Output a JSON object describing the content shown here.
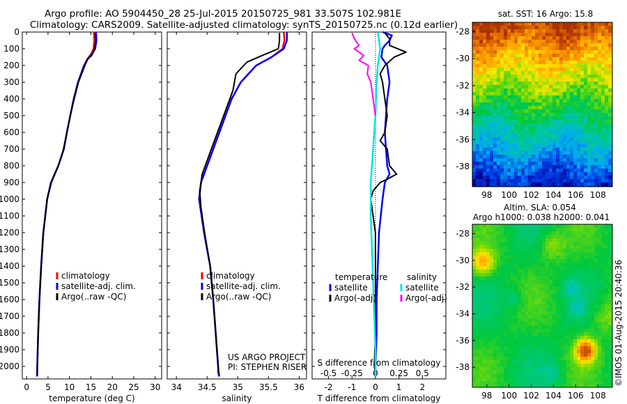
{
  "header": {
    "line1": "Argo profile: AO 5904450_28 25-Jul-2015 20150725_981 33.507S 102.981E",
    "line2": "Climatology: CARS2009. Satellite-adjusted climatology: synTS_20150725.nc (0.12d earlier)"
  },
  "colors": {
    "climatology": "#ff0000",
    "satellite": "#0000ff",
    "argo": "#000000",
    "temp_diff_satellite": "#0000ff",
    "temp_diff_argo": "#000000",
    "sal_diff_satellite": "#00e5e5",
    "sal_diff_argo": "#ff00ff"
  },
  "depth_axis": {
    "range": [
      0,
      2075
    ],
    "ticks": [
      0,
      100,
      200,
      300,
      400,
      500,
      600,
      700,
      800,
      900,
      1000,
      1100,
      1200,
      1300,
      1400,
      1500,
      1600,
      1700,
      1800,
      1900,
      2000
    ]
  },
  "temperature_panel": {
    "xlabel": "temperature (deg C)",
    "xrange": [
      -1,
      31.5
    ],
    "xticks": [
      0,
      5,
      10,
      15,
      20,
      25,
      30
    ],
    "legend": [
      "climatology",
      "satellite-adj. clim.",
      "Argo(..raw -QC)"
    ]
  },
  "salinity_panel": {
    "xlabel": "salinity",
    "xrange": [
      33.85,
      36.12
    ],
    "xticks": [
      34,
      34.5,
      35,
      35.5,
      36
    ],
    "legend": [
      "climatology",
      "satellite-adj. clim.",
      "Argo(..raw -QC)"
    ],
    "annotation1": "US ARGO PROJECT",
    "annotation2": "PI: STEPHEN RISER"
  },
  "difference_panel": {
    "xlabel": "T difference from climatology",
    "slabel": "S difference from climatology",
    "xrange": [
      -2.7,
      3.0
    ],
    "xticks": [
      -2,
      -1,
      0,
      1,
      2
    ],
    "s_ticks": [
      "-0.5",
      "-0.25",
      "0",
      "0.25",
      "0.5"
    ],
    "s_tick_positions_T_units": [
      -2,
      -1,
      0,
      1,
      2
    ],
    "legend_temperature_title": "temperature",
    "legend_salinity_title": "salinity",
    "legend_temperature": [
      "satellite",
      "Argo(-adj)"
    ],
    "legend_salinity": [
      "satellite",
      "Argo(-adj)"
    ]
  },
  "sst_map": {
    "title": "sat. SST: 16 Argo: 15.8",
    "xticks": [
      98,
      100,
      102,
      104,
      106,
      108
    ],
    "yticks": [
      -28,
      -30,
      -32,
      -34,
      -36,
      -38
    ],
    "xrange": [
      96.7,
      109.3
    ],
    "yrange": [
      -39.5,
      -27.3
    ]
  },
  "sla_map": {
    "title1": "Altim. SLA: 0.054",
    "title2": "Argo h1000: 0.038 h2000: 0.041",
    "xticks": [
      98,
      100,
      102,
      104,
      106,
      108
    ],
    "yticks": [
      -28,
      -30,
      -32,
      -34,
      -36,
      -38
    ],
    "xrange": [
      96.7,
      109.3
    ],
    "yrange": [
      -39.5,
      -27.3
    ]
  },
  "side_stamp": "©IMOS 01-Aug-2015 20:40:36",
  "chart_data": [
    {
      "type": "line",
      "title": "",
      "xlabel": "temperature (deg C)",
      "ylabel": "",
      "xlim": [
        -1,
        31.5
      ],
      "ylim": [
        2075,
        0
      ],
      "series": [
        {
          "name": "climatology",
          "depth": [
            0,
            50,
            100,
            130,
            160,
            200,
            300,
            400,
            500,
            600,
            700,
            800,
            900,
            1000,
            1200,
            1400,
            1600,
            1800,
            2000,
            2060
          ],
          "values": [
            15.7,
            15.8,
            15.6,
            15.1,
            14.2,
            13.4,
            12.0,
            11.0,
            10.2,
            9.4,
            8.7,
            7.4,
            5.7,
            4.8,
            3.9,
            3.4,
            3.0,
            2.7,
            2.5,
            2.4
          ]
        },
        {
          "name": "satellite-adj. clim.",
          "depth": [
            0,
            50,
            100,
            130,
            160,
            200,
            300,
            400,
            500,
            600,
            700,
            800,
            900,
            1000,
            1200,
            1400,
            1600,
            1800,
            2000,
            2060
          ],
          "values": [
            16.2,
            16.3,
            16.0,
            15.3,
            14.3,
            13.4,
            12.0,
            11.0,
            10.2,
            9.4,
            8.7,
            7.4,
            5.7,
            4.8,
            3.9,
            3.4,
            3.0,
            2.7,
            2.5,
            2.5
          ]
        },
        {
          "name": "Argo(..raw -QC)",
          "depth": [
            5,
            50,
            100,
            140,
            160,
            200,
            300,
            400,
            500,
            600,
            700,
            800,
            900,
            1000,
            1200,
            1400,
            1600,
            1800,
            2000,
            2040
          ],
          "values": [
            16.0,
            16.1,
            15.9,
            15.2,
            14.3,
            13.6,
            12.1,
            11.1,
            10.2,
            9.4,
            8.6,
            7.4,
            5.8,
            4.8,
            3.9,
            3.4,
            3.0,
            2.7,
            2.5,
            2.5
          ]
        }
      ]
    },
    {
      "type": "line",
      "title": "",
      "xlabel": "salinity",
      "ylabel": "",
      "xlim": [
        33.85,
        36.12
      ],
      "ylim": [
        2075,
        0
      ],
      "series": [
        {
          "name": "climatology",
          "depth": [
            0,
            50,
            100,
            150,
            200,
            300,
            400,
            500,
            600,
            700,
            800,
            900,
            1000,
            1200,
            1400,
            1600,
            1800,
            2000,
            2060
          ],
          "values": [
            35.75,
            35.76,
            35.73,
            35.55,
            35.3,
            35.05,
            34.9,
            34.8,
            34.7,
            34.6,
            34.5,
            34.4,
            34.37,
            34.45,
            34.55,
            34.6,
            34.64,
            34.68,
            34.7
          ]
        },
        {
          "name": "satellite-adj. clim.",
          "depth": [
            0,
            50,
            100,
            150,
            200,
            300,
            400,
            500,
            600,
            700,
            800,
            900,
            1000,
            1200,
            1400,
            1600,
            1800,
            2000,
            2060
          ],
          "values": [
            35.8,
            35.8,
            35.75,
            35.55,
            35.3,
            35.05,
            34.9,
            34.8,
            34.7,
            34.6,
            34.5,
            34.4,
            34.37,
            34.45,
            34.55,
            34.6,
            34.64,
            34.68,
            34.69
          ]
        },
        {
          "name": "Argo(..raw -QC)",
          "depth": [
            5,
            50,
            100,
            140,
            180,
            250,
            350,
            450,
            550,
            650,
            750,
            850,
            950,
            1050,
            1200,
            1400,
            1600,
            1800,
            2000,
            2040
          ],
          "values": [
            35.68,
            35.68,
            35.66,
            35.4,
            35.15,
            34.97,
            34.92,
            34.82,
            34.72,
            34.62,
            34.52,
            34.42,
            34.38,
            34.4,
            34.46,
            34.55,
            34.6,
            34.64,
            34.68,
            34.68
          ]
        }
      ]
    },
    {
      "type": "line",
      "title": "",
      "xlabel": "T difference from climatology",
      "ylabel": "",
      "xlim": [
        -2.7,
        3.0
      ],
      "ylim": [
        2075,
        0
      ],
      "series": [
        {
          "name": "temperature satellite",
          "depth": [
            0,
            20,
            50,
            80,
            100,
            150,
            200,
            300,
            400,
            600,
            800,
            850,
            900,
            1000,
            1200,
            1400,
            1600,
            1800,
            2000,
            2060
          ],
          "values": [
            0.3,
            0.7,
            0.6,
            0.4,
            0.3,
            0.25,
            0.5,
            0.6,
            0.5,
            0.4,
            0.5,
            0.6,
            0.4,
            0.3,
            0.15,
            0.1,
            0.05,
            0.05,
            0.0,
            0.0
          ]
        },
        {
          "name": "temperature Argo(-adj)",
          "depth": [
            5,
            40,
            80,
            120,
            150,
            200,
            250,
            300,
            400,
            500,
            600,
            650,
            700,
            800,
            850,
            880,
            900,
            950,
            1000,
            1200,
            1400,
            1600,
            1800,
            2000,
            2040
          ],
          "values": [
            0.4,
            0.6,
            0.6,
            1.3,
            0.8,
            0.4,
            0.2,
            0.3,
            0.4,
            0.5,
            0.4,
            0.2,
            0.5,
            0.6,
            0.9,
            0.5,
            0.2,
            -0.1,
            -0.2,
            0.0,
            0.0,
            0.0,
            0.0,
            -0.05,
            0.0
          ]
        },
        {
          "name": "salinity satellite",
          "depth": [
            0,
            100,
            200,
            300,
            500,
            700,
            900,
            1100,
            1300,
            1500,
            1700,
            1900,
            2060
          ],
          "values": [
            0.1,
            0.2,
            0.1,
            0.05,
            0.0,
            -0.1,
            -0.2,
            -0.2,
            -0.15,
            -0.1,
            -0.05,
            0.0,
            0.0
          ]
        },
        {
          "name": "salinity Argo(-adj)",
          "depth": [
            5,
            40,
            80,
            100,
            140,
            170,
            200,
            250,
            300,
            400,
            500
          ],
          "values": [
            -1.0,
            -0.9,
            -0.7,
            -0.9,
            -0.5,
            -0.7,
            -0.3,
            -0.35,
            -0.2,
            -0.1,
            0.0
          ]
        }
      ]
    },
    {
      "type": "heatmap",
      "title": "sat. SST: 16 Argo: 15.8",
      "xlabel": "",
      "ylabel": "",
      "xlim": [
        96.7,
        109.3
      ],
      "ylim": [
        -39.5,
        -27.3
      ],
      "x_ticks": [
        98,
        100,
        102,
        104,
        106,
        108
      ],
      "y_ticks": [
        -28,
        -30,
        -32,
        -34,
        -36,
        -38
      ]
    },
    {
      "type": "heatmap",
      "title": "Altim. SLA: 0.054",
      "subtitle": "Argo h1000: 0.038 h2000: 0.041",
      "xlabel": "",
      "ylabel": "",
      "xlim": [
        96.7,
        109.3
      ],
      "ylim": [
        -39.5,
        -27.3
      ],
      "x_ticks": [
        98,
        100,
        102,
        104,
        106,
        108
      ],
      "y_ticks": [
        -28,
        -30,
        -32,
        -34,
        -36,
        -38
      ]
    }
  ]
}
